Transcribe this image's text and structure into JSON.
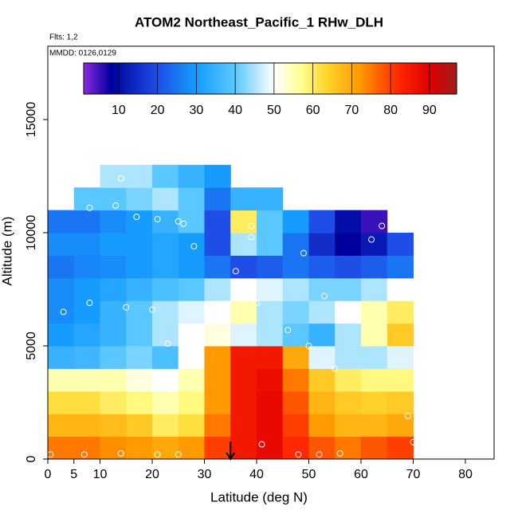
{
  "chart_data": {
    "type": "heatmap",
    "title": "ATOM2 Northeast_Pacific_1 RHw_DLH",
    "annotations": [
      "Flts: 1,2",
      "MMDD: 0126,0129"
    ],
    "x_label": "Latitude (deg N)",
    "y_label": "Altitude (m)",
    "xlim": [
      0,
      85.5
    ],
    "xticks": [
      0,
      5,
      10,
      20,
      30,
      40,
      50,
      60,
      70,
      80
    ],
    "ylim": [
      0,
      18240
    ],
    "yticks": [
      0,
      5000,
      10000,
      15000
    ],
    "lat_bins": [
      0,
      5,
      10,
      15,
      20,
      25,
      30,
      35,
      40,
      45,
      50,
      55,
      60,
      65,
      70,
      75
    ],
    "alt_bins": [
      0,
      1000,
      2000,
      3000,
      4000,
      5000,
      6000,
      7000,
      8000,
      9000,
      10000,
      11000,
      12000,
      13000
    ],
    "values": [
      [
        75,
        75,
        73,
        72,
        70,
        72,
        80,
        85,
        88,
        82,
        78,
        75,
        78,
        80,
        null
      ],
      [
        68,
        68,
        67,
        65,
        60,
        62,
        75,
        85,
        88,
        80,
        72,
        68,
        68,
        70,
        null
      ],
      [
        62,
        62,
        60,
        58,
        55,
        58,
        72,
        85,
        88,
        78,
        68,
        65,
        64,
        65,
        null
      ],
      [
        55,
        55,
        55,
        52,
        50,
        55,
        72,
        85,
        87,
        75,
        65,
        60,
        58,
        58,
        null
      ],
      [
        35,
        36,
        40,
        42,
        38,
        50,
        72,
        85,
        85,
        70,
        48,
        45,
        45,
        48,
        null
      ],
      [
        30,
        32,
        35,
        40,
        45,
        50,
        52,
        48,
        45,
        40,
        35,
        45,
        55,
        65,
        null
      ],
      [
        28,
        30,
        35,
        40,
        45,
        48,
        50,
        55,
        45,
        42,
        45,
        50,
        55,
        60,
        null
      ],
      [
        28,
        30,
        32,
        35,
        38,
        40,
        45,
        50,
        48,
        45,
        42,
        42,
        45,
        50,
        null
      ],
      [
        25,
        27,
        28,
        30,
        32,
        30,
        25,
        20,
        22,
        25,
        22,
        20,
        22,
        25,
        null
      ],
      [
        28,
        28,
        30,
        30,
        32,
        30,
        20,
        45,
        40,
        25,
        15,
        8,
        12,
        20,
        null
      ],
      [
        25,
        25,
        28,
        30,
        35,
        40,
        20,
        60,
        40,
        30,
        20,
        10,
        5,
        null,
        null
      ],
      [
        null,
        40,
        40,
        42,
        45,
        40,
        25,
        35,
        35,
        null,
        null,
        null,
        null,
        null,
        null
      ],
      [
        null,
        null,
        45,
        45,
        40,
        35,
        30,
        null,
        null,
        null,
        null,
        null,
        null,
        null,
        null
      ]
    ],
    "colorbar_lim": [
      1,
      97
    ],
    "colorbar_ticks": [
      10,
      20,
      30,
      40,
      50,
      60,
      70,
      80,
      90
    ],
    "colorscale": [
      [
        1,
        "#8a2be2"
      ],
      [
        8,
        "#00009c"
      ],
      [
        20,
        "#1e4ee6"
      ],
      [
        30,
        "#169cff"
      ],
      [
        40,
        "#5ac8ff"
      ],
      [
        50,
        "#ffffff"
      ],
      [
        57,
        "#ffff90"
      ],
      [
        63,
        "#ffd830"
      ],
      [
        72,
        "#ff9a00"
      ],
      [
        82,
        "#ff2800"
      ],
      [
        90,
        "#e00000"
      ],
      [
        97,
        "#a01c1c"
      ]
    ],
    "obs_x": [
      0.5,
      7,
      14,
      21,
      25,
      48,
      52,
      56,
      41,
      70,
      69,
      55,
      3,
      8,
      15,
      20,
      23,
      28,
      36,
      46,
      49,
      53,
      57,
      62,
      2,
      8,
      13,
      17,
      21,
      25,
      39,
      40,
      50,
      64,
      66,
      14,
      26,
      39
    ],
    "obs_y": [
      200,
      200,
      250,
      200,
      200,
      200,
      200,
      250,
      650,
      750,
      1900,
      4000,
      6500,
      6900,
      6700,
      6600,
      5100,
      9400,
      8300,
      5700,
      9100,
      7200,
      6400,
      9700,
      11200,
      11100,
      11200,
      10700,
      10600,
      10500,
      10300,
      6900,
      5000,
      10300,
      10300,
      12400,
      10400,
      9800
    ],
    "arrow_lat": 35
  }
}
